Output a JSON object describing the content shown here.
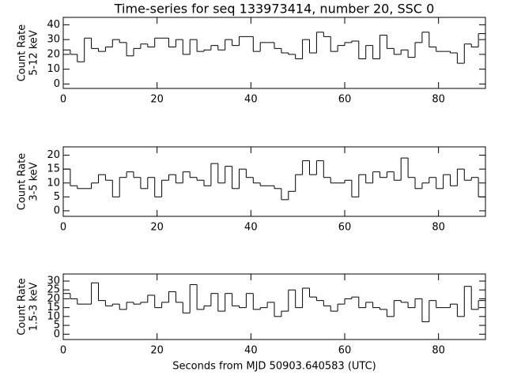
{
  "chart_data": [
    {
      "type": "histogram",
      "title": "Time-series for seq 133973414, number 20, SSC 0",
      "ylabel": [
        "Count Rate",
        "5-12 keV"
      ],
      "bins": [
        0,
        1.5,
        3,
        4.5,
        6,
        7.5,
        9,
        10.5,
        12,
        13.5,
        15,
        16.5,
        18,
        19.5,
        21,
        22.5,
        24,
        25.5,
        27,
        28.5,
        30,
        31.5,
        33,
        34.5,
        36,
        37.5,
        39,
        40.5,
        42,
        43.5,
        45,
        46.5,
        48,
        49.5,
        51,
        52.5,
        54,
        55.5,
        57,
        58.5,
        60,
        61.5,
        63,
        64.5,
        66,
        67.5,
        69,
        70.5,
        72,
        73.5,
        75,
        76.5,
        78,
        79.5,
        81,
        82.5,
        84,
        85.5,
        87,
        88.5,
        90
      ],
      "values": [
        23,
        20,
        15,
        31,
        24,
        22,
        25,
        30,
        28,
        19,
        24,
        27,
        25,
        31,
        31,
        25,
        30,
        20,
        30,
        22,
        23,
        26,
        23,
        30,
        26,
        32,
        32,
        22,
        28,
        28,
        24,
        21,
        20,
        17,
        30,
        21,
        35,
        32,
        22,
        26,
        28,
        29,
        17,
        26,
        17,
        33,
        24,
        20,
        23,
        18,
        28,
        35,
        25,
        22,
        22,
        21,
        14,
        27,
        25,
        34
      ],
      "xlim": [
        0,
        90
      ],
      "xticks": [
        0,
        20,
        40,
        60,
        80
      ],
      "ylim": [
        -3,
        45
      ],
      "yticks": [
        0,
        10,
        20,
        30,
        40
      ],
      "color": "#000000"
    },
    {
      "type": "histogram",
      "ylabel": [
        "Count Rate",
        "3-5 keV"
      ],
      "bins": [
        0,
        1.5,
        3,
        4.5,
        6,
        7.5,
        9,
        10.5,
        12,
        13.5,
        15,
        16.5,
        18,
        19.5,
        21,
        22.5,
        24,
        25.5,
        27,
        28.5,
        30,
        31.5,
        33,
        34.5,
        36,
        37.5,
        39,
        40.5,
        42,
        43.5,
        45,
        46.5,
        48,
        49.5,
        51,
        52.5,
        54,
        55.5,
        57,
        58.5,
        60,
        61.5,
        63,
        64.5,
        66,
        67.5,
        69,
        70.5,
        72,
        73.5,
        75,
        76.5,
        78,
        79.5,
        81,
        82.5,
        84,
        85.5,
        87,
        88.5,
        90
      ],
      "values": [
        15,
        9,
        8,
        8,
        10,
        13,
        11,
        5,
        12,
        14,
        12,
        8,
        12,
        5,
        11,
        13,
        10,
        14,
        12,
        11,
        9,
        17,
        10,
        16,
        8,
        15,
        12,
        10,
        9,
        9,
        8,
        4,
        7,
        13,
        18,
        13,
        18,
        12,
        10,
        10,
        11,
        5,
        13,
        10,
        14,
        12,
        14,
        11,
        19,
        12,
        8,
        10,
        12,
        8,
        13,
        9,
        15,
        11,
        12,
        5
      ],
      "xlim": [
        0,
        90
      ],
      "xticks": [
        0,
        20,
        40,
        60,
        80
      ],
      "ylim": [
        -2,
        23
      ],
      "yticks": [
        0,
        5,
        10,
        15,
        20
      ],
      "color": "#000000"
    },
    {
      "type": "histogram",
      "ylabel": [
        "Count Rate",
        "1.5-3 keV"
      ],
      "xlabel": "Seconds from MJD 50903.640583 (UTC)",
      "bins": [
        0,
        1.5,
        3,
        4.5,
        6,
        7.5,
        9,
        10.5,
        12,
        13.5,
        15,
        16.5,
        18,
        19.5,
        21,
        22.5,
        24,
        25.5,
        27,
        28.5,
        30,
        31.5,
        33,
        34.5,
        36,
        37.5,
        39,
        40.5,
        42,
        43.5,
        45,
        46.5,
        48,
        49.5,
        51,
        52.5,
        54,
        55.5,
        57,
        58.5,
        60,
        61.5,
        63,
        64.5,
        66,
        67.5,
        69,
        70.5,
        72,
        73.5,
        75,
        76.5,
        78,
        79.5,
        81,
        82.5,
        84,
        85.5,
        87,
        88.5,
        90
      ],
      "values": [
        23,
        20,
        17,
        17,
        29,
        19,
        16,
        17,
        14,
        18,
        17,
        18,
        22,
        15,
        18,
        24,
        18,
        12,
        28,
        14,
        16,
        23,
        13,
        23,
        16,
        15,
        23,
        14,
        15,
        18,
        10,
        13,
        25,
        15,
        26,
        21,
        19,
        16,
        13,
        17,
        20,
        21,
        15,
        18,
        15,
        14,
        10,
        19,
        18,
        15,
        20,
        7,
        19,
        15,
        15,
        17,
        10,
        27,
        14,
        19
      ],
      "xlim": [
        0,
        90
      ],
      "xticks": [
        0,
        20,
        40,
        60,
        80
      ],
      "ylim": [
        -3,
        34
      ],
      "yticks": [
        0,
        5,
        10,
        15,
        20,
        25,
        30
      ],
      "color": "#000000"
    }
  ]
}
